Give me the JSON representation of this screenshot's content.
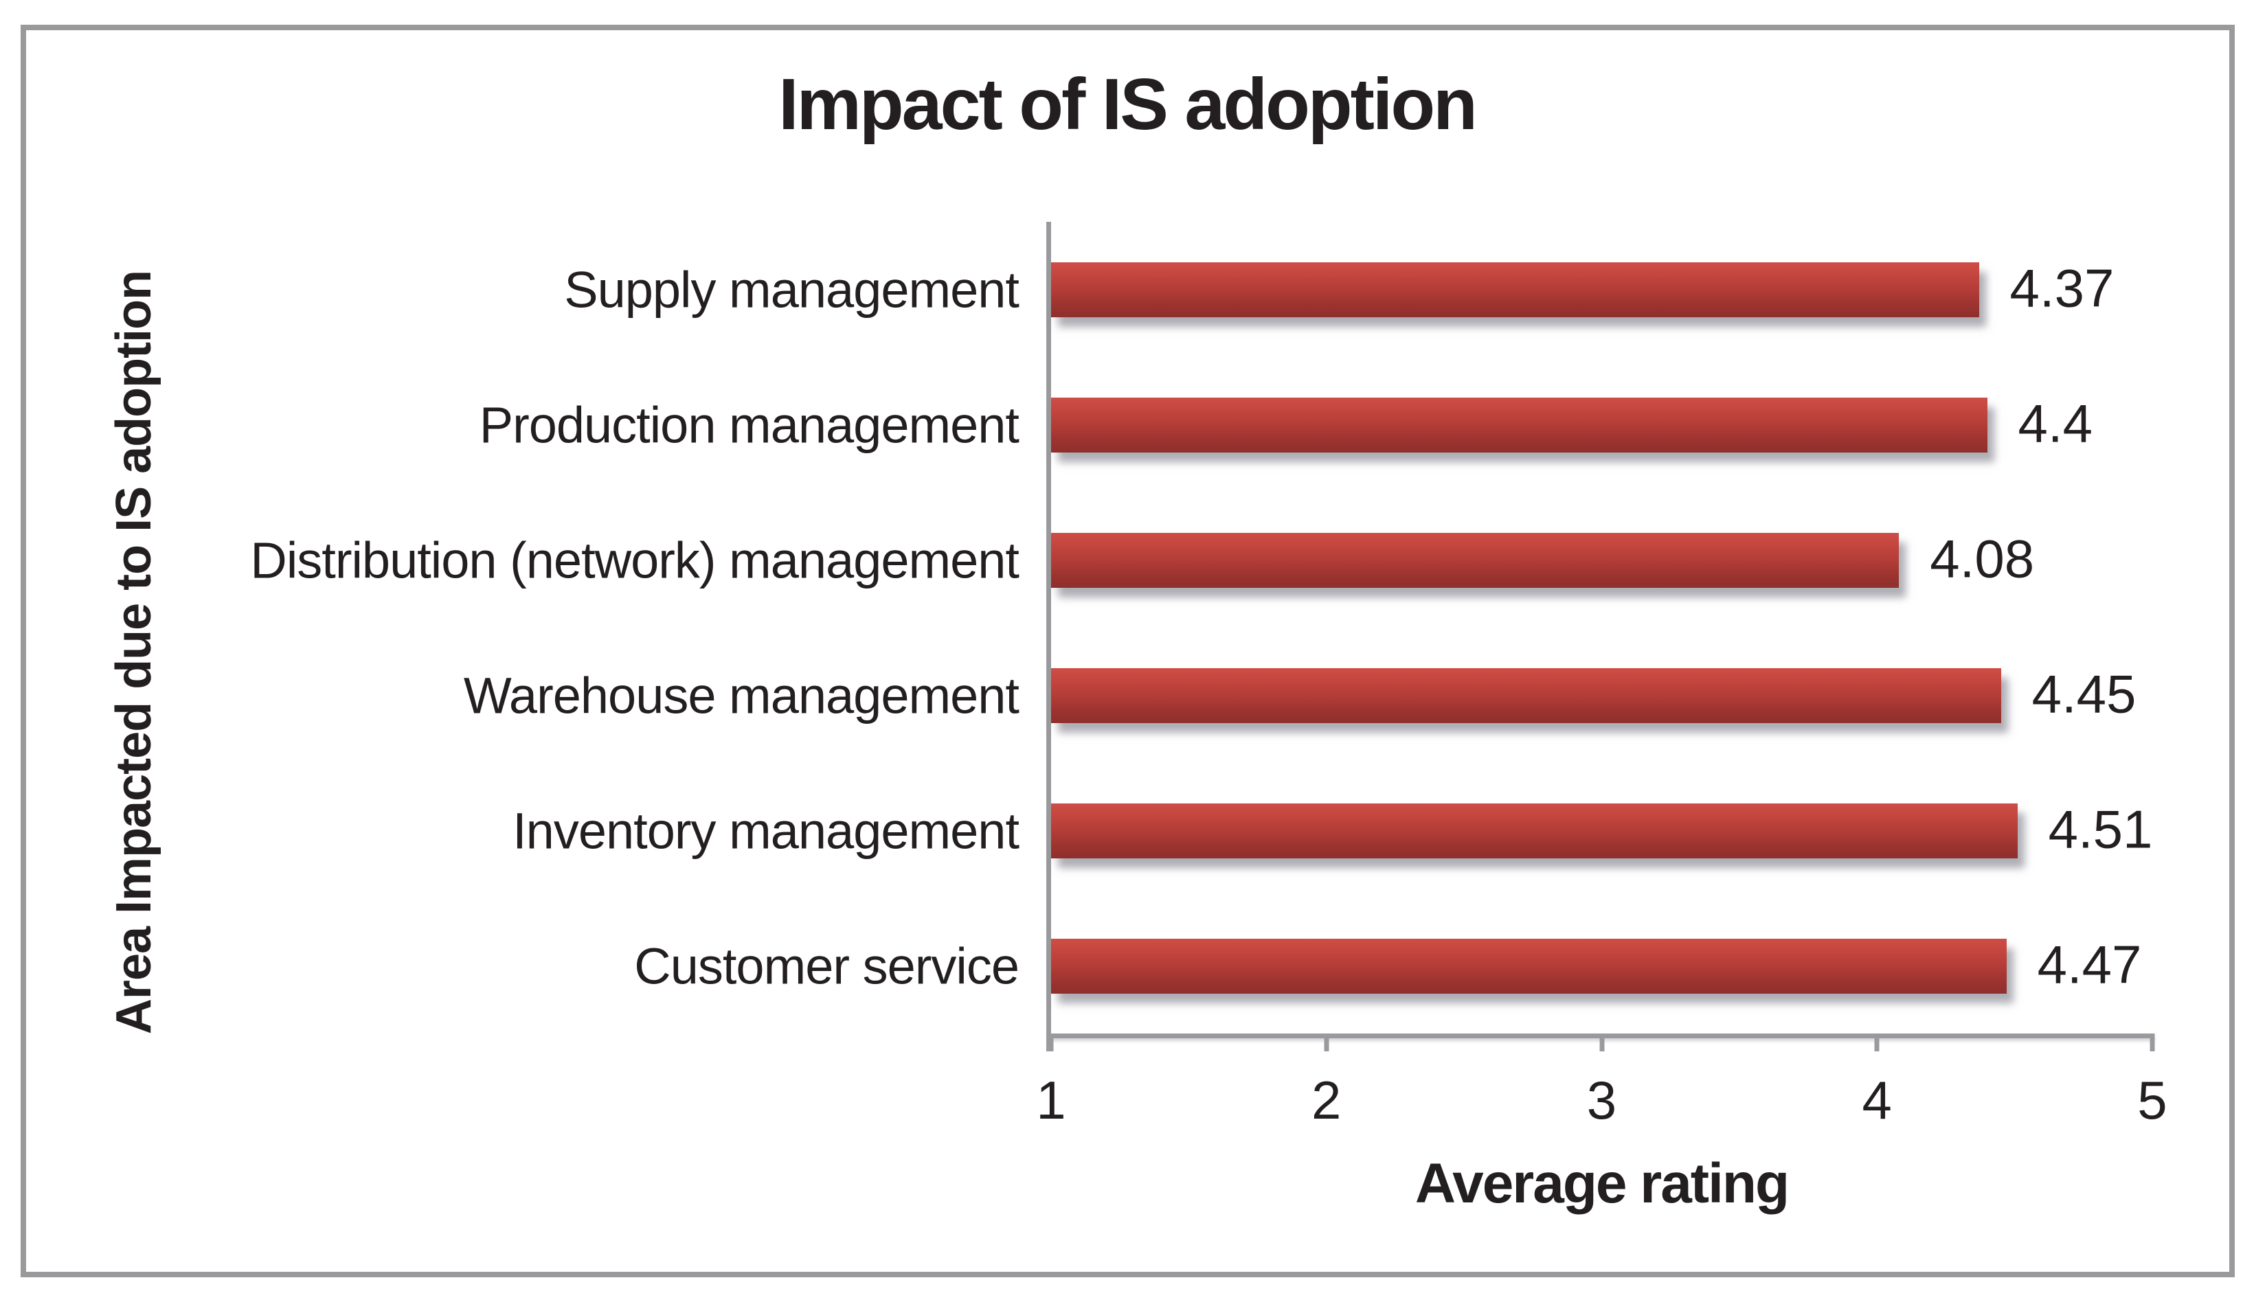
{
  "chart_data": {
    "type": "bar",
    "orientation": "horizontal",
    "title": "Impact of IS adoption",
    "xlabel": "Average rating",
    "ylabel": "Area Impacted due to IS adoption",
    "categories": [
      "Supply management",
      "Production management",
      "Distribution (network) management",
      "Warehouse management",
      "Inventory management",
      "Customer service"
    ],
    "values": [
      4.37,
      4.4,
      4.08,
      4.45,
      4.51,
      4.47
    ],
    "value_labels": [
      "4.37",
      "4.4",
      "4.08",
      "4.45",
      "4.51",
      "4.47"
    ],
    "xlim": [
      1,
      5
    ],
    "xticks": [
      1,
      2,
      3,
      4,
      5
    ],
    "xtick_labels": [
      "1",
      "2",
      "3",
      "4",
      "5"
    ],
    "grid": false,
    "legend": "none",
    "colors": {
      "bar_top": "#cf4d47",
      "bar_mid": "#b23c37",
      "bar_bottom": "#8e2f2c",
      "axis": "#9a9a9d",
      "frame": "#9a9a9d",
      "text": "#231f20",
      "background": "#ffffff"
    }
  }
}
